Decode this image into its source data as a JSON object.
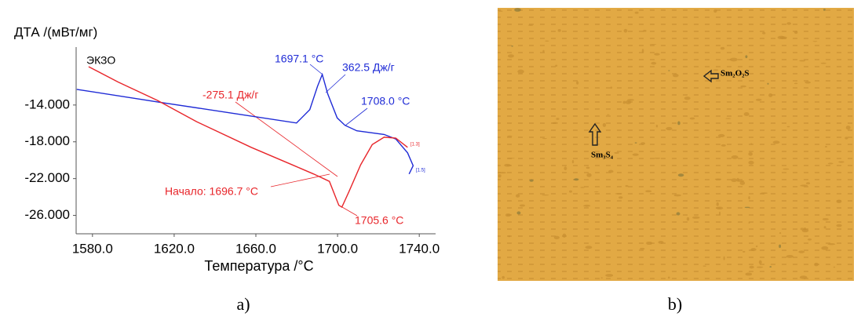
{
  "chart_data": {
    "type": "line",
    "ylabel": "ДТА /(мВт/мг)",
    "xlabel": "Температура /°C",
    "xlim": [
      1572,
      1748
    ],
    "ylim": [
      -28,
      -7.7
    ],
    "xticks": [
      {
        "value": 1580,
        "label": "1580.0"
      },
      {
        "value": 1620,
        "label": "1620.0"
      },
      {
        "value": 1660,
        "label": "1660.0"
      },
      {
        "value": 1700,
        "label": "1700.0"
      },
      {
        "value": 1740,
        "label": "1740.0"
      }
    ],
    "yticks": [
      {
        "value": -14,
        "label": "-14.000"
      },
      {
        "value": -18,
        "label": "-18.000"
      },
      {
        "value": -22,
        "label": "-22.000"
      },
      {
        "value": -26,
        "label": "-26.000"
      }
    ],
    "series": [
      {
        "color": "#1f2bd6",
        "x": [
          1572.3,
          1611.8,
          1650,
          1679.9,
          1686.4,
          1690.2,
          1692.5,
          1695.2,
          1699.8,
          1703.6,
          1709.4,
          1722.8,
          1728.5,
          1734.3,
          1737,
          1735
        ],
        "values": [
          -12.3,
          -13.66,
          -14.94,
          -15.96,
          -14.5,
          -11.96,
          -10.68,
          -12.8,
          -15.4,
          -16.2,
          -16.8,
          -17.2,
          -17.7,
          -19.2,
          -20.6,
          -21.5
        ]
      },
      {
        "color": "#e8262b",
        "x": [
          1578.1,
          1592.6,
          1611.8,
          1630.9,
          1657.7,
          1678.8,
          1688.3,
          1696,
          1700.6,
          1702.1,
          1705.6,
          1711.3,
          1717,
          1722.8,
          1728.5,
          1734.3
        ],
        "values": [
          -9.83,
          -11.5,
          -13.5,
          -15.8,
          -18.6,
          -20.6,
          -21.5,
          -22.3,
          -24.9,
          -25.1,
          -23.4,
          -20.5,
          -18.3,
          -17.5,
          -17.6,
          -18.6
        ]
      }
    ],
    "annotations": [
      {
        "text": "ЭКЗО",
        "color": "#000000"
      },
      {
        "text": "1697.1 °C",
        "color": "#1f2bd6"
      },
      {
        "text": "362.5 Дж/г",
        "color": "#1f2bd6"
      },
      {
        "text": "1708.0 °C",
        "color": "#1f2bd6"
      },
      {
        "text": "-275.1 Дж/г",
        "color": "#e8262b"
      },
      {
        "text": "Начало: 1696.7 °C",
        "color": "#e8262b"
      },
      {
        "text": "1705.6 °C",
        "color": "#e8262b"
      },
      {
        "text": "[1.3]",
        "color": "#e8262b"
      },
      {
        "text": "[1.5]",
        "color": "#1f2bd6"
      }
    ]
  },
  "micrograph": {
    "labels": [
      "Sm₂O₂S",
      "Sm₃S₄"
    ]
  },
  "captions": [
    "a)",
    "b)"
  ]
}
